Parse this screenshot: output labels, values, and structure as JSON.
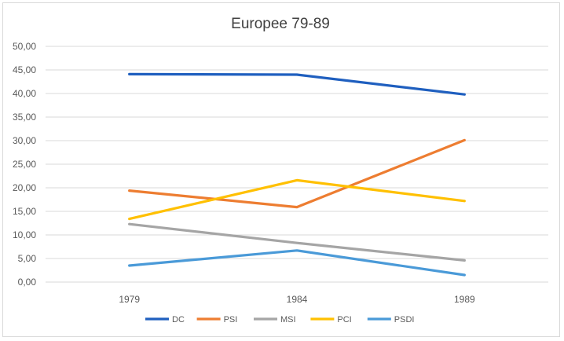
{
  "chart_data": {
    "type": "line",
    "title": "Europee 79-89",
    "xlabel": "",
    "ylabel": "",
    "categories": [
      "1979",
      "1984",
      "1989"
    ],
    "ylim": [
      0,
      50
    ],
    "yticks": [
      "0,00",
      "5,00",
      "10,00",
      "15,00",
      "20,00",
      "25,00",
      "30,00",
      "35,00",
      "40,00",
      "45,00",
      "50,00"
    ],
    "grid": true,
    "legend_position": "bottom",
    "series": [
      {
        "name": "DC",
        "color": "#1f5fbf",
        "values": [
          44.1,
          44.0,
          39.8
        ]
      },
      {
        "name": "PSI",
        "color": "#ed7d31",
        "values": [
          19.4,
          15.9,
          30.1
        ]
      },
      {
        "name": "MSI",
        "color": "#a5a5a5",
        "values": [
          12.3,
          8.3,
          4.6
        ]
      },
      {
        "name": "PCI",
        "color": "#ffc000",
        "values": [
          13.4,
          21.6,
          17.2
        ]
      },
      {
        "name": "PSDI",
        "color": "#4a9ad8",
        "values": [
          3.5,
          6.7,
          1.5
        ]
      }
    ]
  }
}
